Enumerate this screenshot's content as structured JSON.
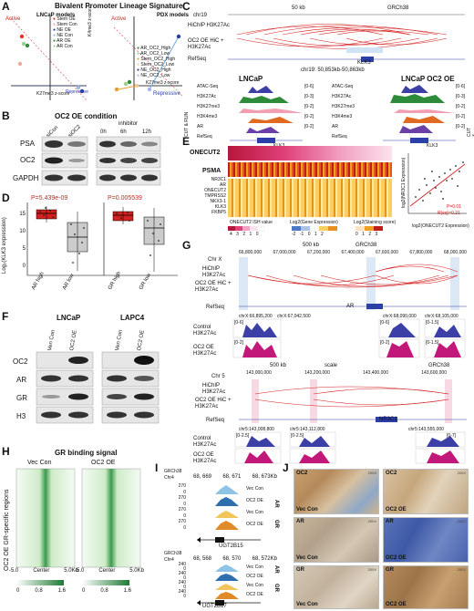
{
  "panels": {
    "A": {
      "letter": "A",
      "title": "Bivalent Promoter Lineage Signature",
      "lncap_title": "LNCaP models",
      "pdx_title": "PDX models",
      "active": "Active",
      "repressive": "Repressive",
      "y_label": "K4me3 z-score",
      "x_label": "K27me3 z-score",
      "ticks_left_x": [
        "-1",
        "0",
        "1"
      ],
      "ticks_left_y": [
        "1",
        "-1"
      ],
      "ticks_right_x": [
        "-2",
        "-1",
        "1",
        "2"
      ],
      "ticks_right_y": [
        "4",
        "3",
        "2",
        "1",
        "-1",
        "-2"
      ],
      "legend_left": [
        "Stem OE",
        "Stem Con",
        "NE OE",
        "NE Con",
        "AR OE",
        "AR Con"
      ],
      "legend_right": [
        "AR_OC2_High",
        "AR_OC2_Low",
        "Stem_OC2_High",
        "Stem_OC2_Low",
        "NE_OC2_High",
        "NE_OC2_Low"
      ],
      "colors": {
        "stem_oe": "#e8312a",
        "stem_con": "#f4a6a0",
        "ne_oe": "#2a3f9e",
        "ne_con": "#9fb6e6",
        "ar_oe": "#2e8b3a",
        "ar_con": "#9bd18f"
      }
    },
    "B": {
      "letter": "B",
      "title": "OC2 OE condition",
      "lanes_left": [
        "siCon",
        "siOC2"
      ],
      "inhibitor": "inhibitor",
      "lanes_right": [
        "0h",
        "6h",
        "12h"
      ],
      "rows": [
        "PSA",
        "OC2",
        "GAPDH"
      ]
    },
    "C": {
      "letter": "C",
      "chrom": "chr19",
      "scalebar": "50 kb",
      "genome": "GRCh38",
      "track_labels": [
        "HiChIP H3K27Ac",
        "OC2 OE HiC + H3K27Ac",
        "RefSeq"
      ],
      "gene": "KLK3",
      "region": "chr19: 50,853kb-50,863kb",
      "left_title": "LNCaP",
      "right_title": "LNCaP OC2 OE",
      "tracks": [
        "ATAC-Seq",
        "H3K27Ac",
        "H3K27me3",
        "H3K4me3",
        "AR",
        "RefSeq"
      ],
      "cutrun": "CUT & RUN",
      "ranges": [
        "[0-6]",
        "[0-3]",
        "[0-2]",
        "[0-2]",
        "[0-2]"
      ]
    },
    "D": {
      "letter": "D",
      "pvalue_left": "P=5.439e-09",
      "pvalue_right": "P=0.005539",
      "y_label": "Log₂(KLK3 expression)",
      "y_ticks": [
        "15",
        "10",
        "5",
        "0"
      ],
      "x_labels": [
        "AR high",
        "AR low",
        "GR high",
        "GR low"
      ]
    },
    "E": {
      "letter": "E",
      "onecut2": "ONECUT2",
      "psma": "PSMA",
      "genes": [
        "NR3C1",
        "AR",
        "ONECUT2",
        "TMPRSS2",
        "NKX3-1",
        "KLK3",
        "FKBP5"
      ],
      "legend1_title": "ONECUT2 ISH value",
      "legend1_vals": [
        "4",
        "3",
        "2",
        "1",
        "0"
      ],
      "legend2_title": "Log2(Gene Expression)",
      "legend2_vals": [
        "-2",
        "-1",
        "0",
        "1",
        "2"
      ],
      "legend3_title": "Log2(Staining score)",
      "legend3_vals": [
        "0",
        "1",
        "2",
        "3"
      ],
      "scatter_y": "log2(NR3C1 Expression)",
      "scatter_x": "log2(ONECUT2 Expression)",
      "scatter_p": "P=0.01",
      "scatter_r": "R(sq)=0.21"
    },
    "F": {
      "letter": "F",
      "cell_left": "LNCaP",
      "cell_right": "LAPC4",
      "lanes": [
        "Ven Con",
        "OC2 OE"
      ],
      "rows": [
        "OC2",
        "AR",
        "GR",
        "H3"
      ]
    },
    "G": {
      "letter": "G",
      "scalebar": "500 kb",
      "genome": "GRCh38",
      "chrom1": "Chr X",
      "coords1": [
        "66,800,000",
        "67,000,000",
        "67,200,000",
        "67,400,000",
        "67,600,000",
        "67,800,000",
        "68,000,000"
      ],
      "track_labels": [
        "HiChIP H3K27Ac",
        "OC2 OE HiC + H3K27Ac",
        "RefSeq"
      ],
      "gene1": "AR",
      "zoom1": [
        "chrX:66,895,200",
        "chrX:67,042,500",
        "chrX:68,090,000",
        "chrX:68,105,000"
      ],
      "rows": [
        "Control H3K27Ac",
        "OC2 OE H3K27Ac"
      ],
      "ranges": [
        "[0-6]",
        "[0-2]",
        "[0-6]",
        "[0-1.5]",
        "[0-2]",
        "[0-1.5]"
      ],
      "scale2": "500 kb",
      "scale_word": "scale",
      "chrom2": "Chr 5",
      "coords2": [
        "143,000,000",
        "143,200,000",
        "143,400,000",
        "143,600,000"
      ],
      "gene2": "NR3C1",
      "zoom2": [
        "chr5:143,008,800",
        "chr5:143,112,800",
        "chr5:143,555,000"
      ],
      "ranges2": [
        "[0-2.5]",
        "[0-2.5]",
        "[0-7]"
      ]
    },
    "H": {
      "letter": "H",
      "title": "GR binding signal",
      "cols": [
        "Vec Con",
        "OC2 OE"
      ],
      "y_label": "OC2 OE GR-specific regions",
      "x_ticks": [
        "-5.0",
        "Center",
        "5.0Kb"
      ],
      "scale": [
        "0",
        "0.8",
        "1.6"
      ]
    },
    "I": {
      "letter": "I",
      "genome": "GRCh38",
      "chrom": "Chr4",
      "coords1": [
        "68, 669",
        "68, 671",
        "68, 673Kb"
      ],
      "coords2": [
        "68, 568",
        "68, 570",
        "68, 572Kb"
      ],
      "y_ticks1": [
        "270",
        "0",
        "270",
        "0",
        "270",
        "0",
        "270",
        "0"
      ],
      "y_ticks2": [
        "240",
        "0",
        "240",
        "0",
        "240",
        "0",
        "240",
        "0"
      ],
      "tracks": [
        "Vec Con",
        "OC2 OE",
        "Vec Con",
        "OC2 OE"
      ],
      "groups": [
        "AR",
        "GR"
      ],
      "gene1": "UGT2B15",
      "gene2": "UGT2B17"
    },
    "J": {
      "letter": "J",
      "magnification": "200X",
      "rows": [
        "OC2",
        "AR",
        "GR"
      ],
      "cols": [
        "Vec Con",
        "OC2 OE"
      ]
    }
  }
}
